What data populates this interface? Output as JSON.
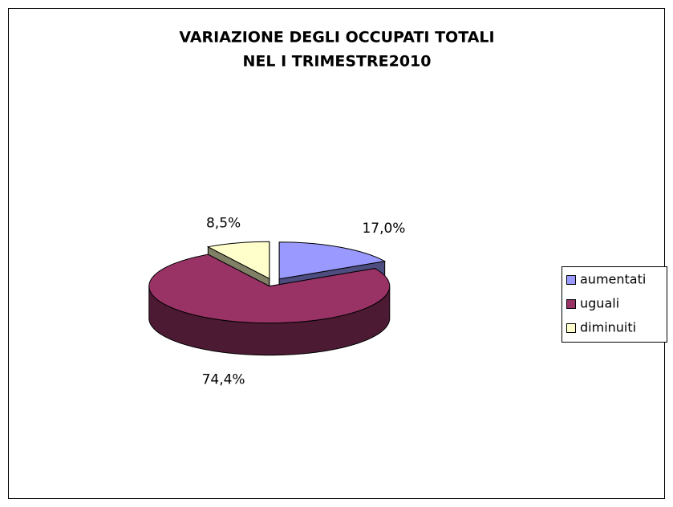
{
  "chart_data": {
    "type": "pie",
    "title": [
      "VARIAZIONE DEGLI OCCUPATI TOTALI",
      "NEL I TRIMESTRE2010"
    ],
    "categories": [
      "aumentati",
      "uguali",
      "diminuiti"
    ],
    "values": [
      17.0,
      74.4,
      8.5
    ],
    "value_labels": [
      "17,0%",
      "74,4%",
      "8,5%"
    ],
    "colors": [
      "#9999ff",
      "#993366",
      "#ffffcc"
    ],
    "legend": "right"
  }
}
